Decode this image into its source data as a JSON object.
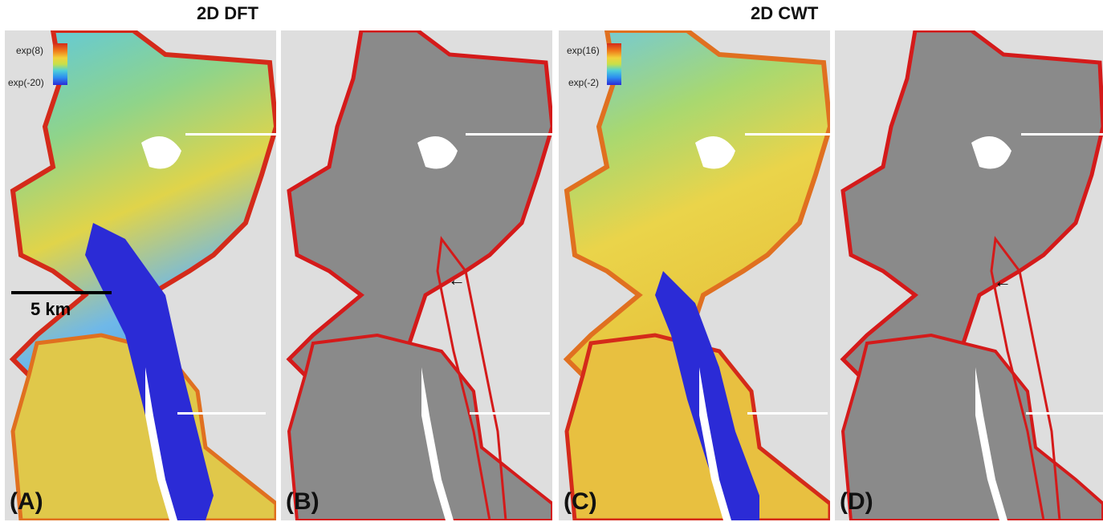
{
  "titles": {
    "left": "2D DFT",
    "right": "2D CWT"
  },
  "panels": [
    {
      "id": "A",
      "label": "(A)",
      "style": "heat",
      "colorbar": {
        "max": "exp(8)",
        "min": "exp(-20)"
      }
    },
    {
      "id": "B",
      "label": "(B)",
      "style": "hillshade"
    },
    {
      "id": "C",
      "label": "(C)",
      "style": "heat",
      "colorbar": {
        "max": "exp(16)",
        "min": "exp(-2)"
      }
    },
    {
      "id": "D",
      "label": "(D)",
      "style": "hillshade"
    }
  ],
  "scale_bar": {
    "label": "5 km"
  },
  "colors": {
    "background": "#dedede",
    "heat_red": "#d42a1a",
    "heat_blue": "#2b2bd6",
    "hillshade_gray": "#8a8a8a",
    "highlight_red": "#d41a1a"
  }
}
